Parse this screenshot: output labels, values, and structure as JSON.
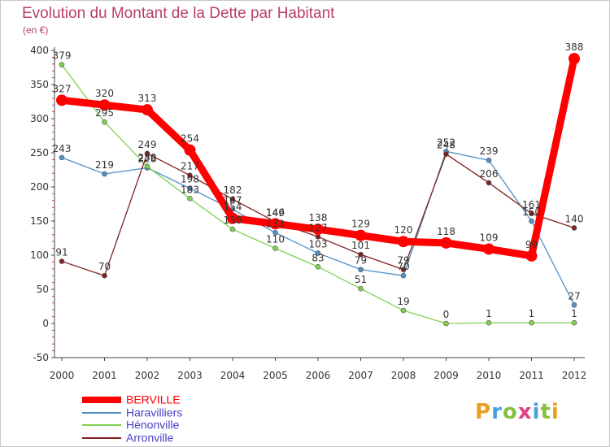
{
  "header": {
    "title": "Evolution du Montant de la Dette par Habitant",
    "unit": "(en €)"
  },
  "logo": {
    "text": "Proxiti",
    "colors": [
      "#e8a020",
      "#4aa0d8",
      "#88c040",
      "#e04080",
      "#4aa0d8",
      "#88c040",
      "#e8a020"
    ]
  },
  "chart_data": {
    "type": "line",
    "title": "Evolution du Montant de la Dette par Habitant",
    "ylabel": "(en €)",
    "xlabel": "",
    "x": [
      "2000",
      "2001",
      "2002",
      "2003",
      "2004",
      "2005",
      "2006",
      "2007",
      "2008",
      "2009",
      "2010",
      "2011",
      "2012"
    ],
    "ylim": [
      -50,
      400
    ],
    "yticks": [
      -50,
      0,
      50,
      100,
      150,
      200,
      250,
      300,
      350,
      400
    ],
    "grid": false,
    "legend_position": "bottom-left",
    "series": [
      {
        "name": "BERVILLE",
        "color": "#ff0000",
        "values": [
          327,
          320,
          313,
          254,
          154,
          146,
          138,
          129,
          120,
          118,
          109,
          99,
          388
        ]
      },
      {
        "name": "Haravilliers",
        "color": "#5090c8",
        "values": [
          243,
          219,
          228,
          198,
          167,
          133,
          103,
          79,
          70,
          252,
          239,
          150,
          27
        ]
      },
      {
        "name": "Hénonville",
        "color": "#80d050",
        "values": [
          379,
          295,
          230,
          183,
          138,
          110,
          83,
          51,
          19,
          0,
          1,
          1,
          1
        ]
      },
      {
        "name": "Arronville",
        "color": "#802020",
        "values": [
          91,
          70,
          249,
          217,
          182,
          149,
          127,
          101,
          79,
          248,
          206,
          161,
          140
        ]
      }
    ]
  }
}
